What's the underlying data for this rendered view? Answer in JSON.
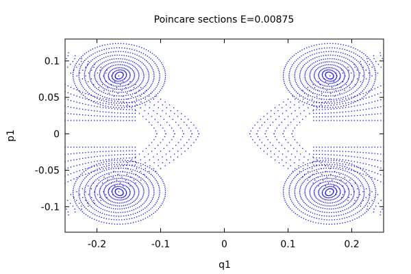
{
  "chart_data": {
    "type": "scatter",
    "title": "Poincare sections E=0.00875",
    "xlabel": "q1",
    "ylabel": "p1",
    "xlim": [
      -0.25,
      0.25
    ],
    "ylim": [
      -0.135,
      0.13
    ],
    "xticks": [
      {
        "value": -0.2,
        "label": "-0.2"
      },
      {
        "value": -0.1,
        "label": "-0.1"
      },
      {
        "value": 0,
        "label": "0"
      },
      {
        "value": 0.1,
        "label": "0.1"
      },
      {
        "value": 0.2,
        "label": "0.2"
      }
    ],
    "yticks": [
      {
        "value": 0.1,
        "label": "0.1"
      },
      {
        "value": 0.05,
        "label": "0.05"
      },
      {
        "value": 0,
        "label": "0"
      },
      {
        "value": -0.05,
        "label": "-0.05"
      },
      {
        "value": -0.1,
        "label": "-0.1"
      }
    ],
    "grid": false,
    "legend": "none",
    "point_color": "#0000ff",
    "islands": {
      "centers": [
        {
          "q1": -0.165,
          "p1": 0.08
        },
        {
          "q1": 0.165,
          "p1": 0.08
        },
        {
          "q1": -0.165,
          "p1": -0.08
        },
        {
          "q1": 0.165,
          "p1": -0.08
        }
      ],
      "orbit_count": 10,
      "orbit_half_width_q1": [
        0.006,
        0.011,
        0.017,
        0.024,
        0.031,
        0.039,
        0.047,
        0.055,
        0.064,
        0.073
      ],
      "orbit_half_height_p1": [
        0.005,
        0.008,
        0.011,
        0.015,
        0.019,
        0.023,
        0.028,
        0.033,
        0.038,
        0.044
      ],
      "orbit_tilt_deg": -25
    },
    "separatrix_curves": {
      "q1_offsets_at_p1_zero": [
        0.04,
        0.055,
        0.072,
        0.09,
        0.108,
        0.126
      ],
      "p1_offsets": [
        0.018,
        0.032,
        0.046,
        0.06,
        0.074,
        0.088
      ]
    }
  }
}
